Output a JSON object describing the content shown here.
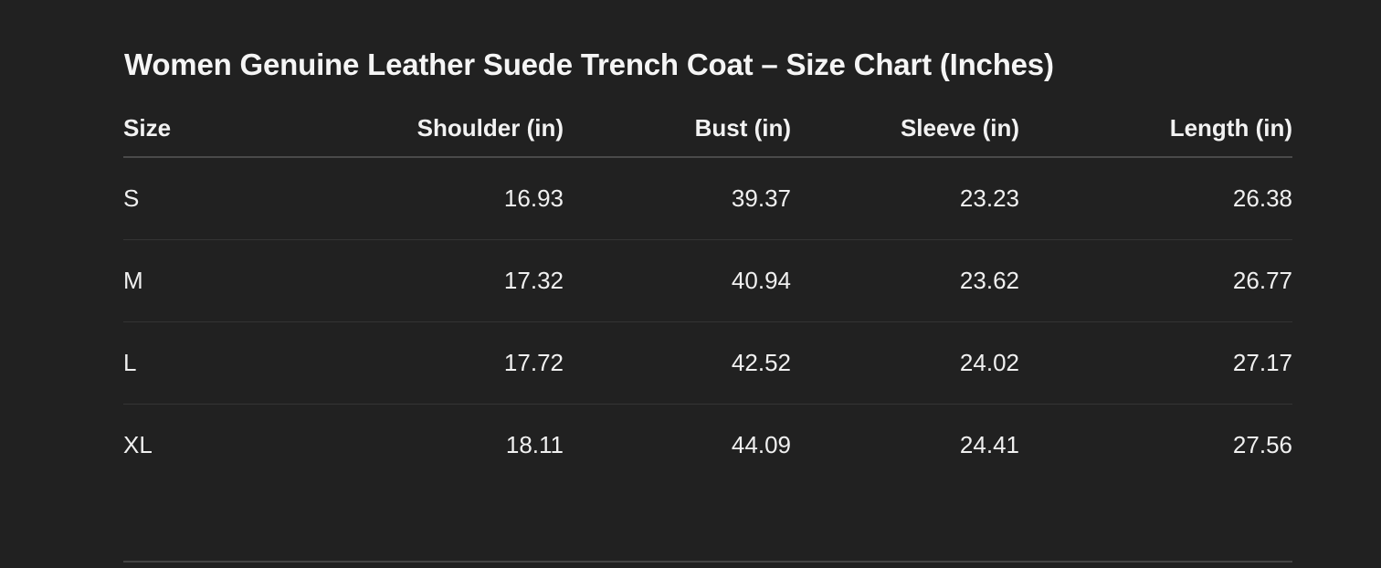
{
  "title": "Women Genuine Leather Suede Trench Coat – Size Chart (Inches)",
  "columns": [
    "Size",
    "Shoulder (in)",
    "Bust (in)",
    "Sleeve (in)",
    "Length (in)"
  ],
  "rows": [
    [
      "S",
      "16.93",
      "39.37",
      "23.23",
      "26.38"
    ],
    [
      "M",
      "17.32",
      "40.94",
      "23.62",
      "26.77"
    ],
    [
      "L",
      "17.72",
      "42.52",
      "24.02",
      "27.17"
    ],
    [
      "XL",
      "18.11",
      "44.09",
      "24.41",
      "27.56"
    ]
  ]
}
